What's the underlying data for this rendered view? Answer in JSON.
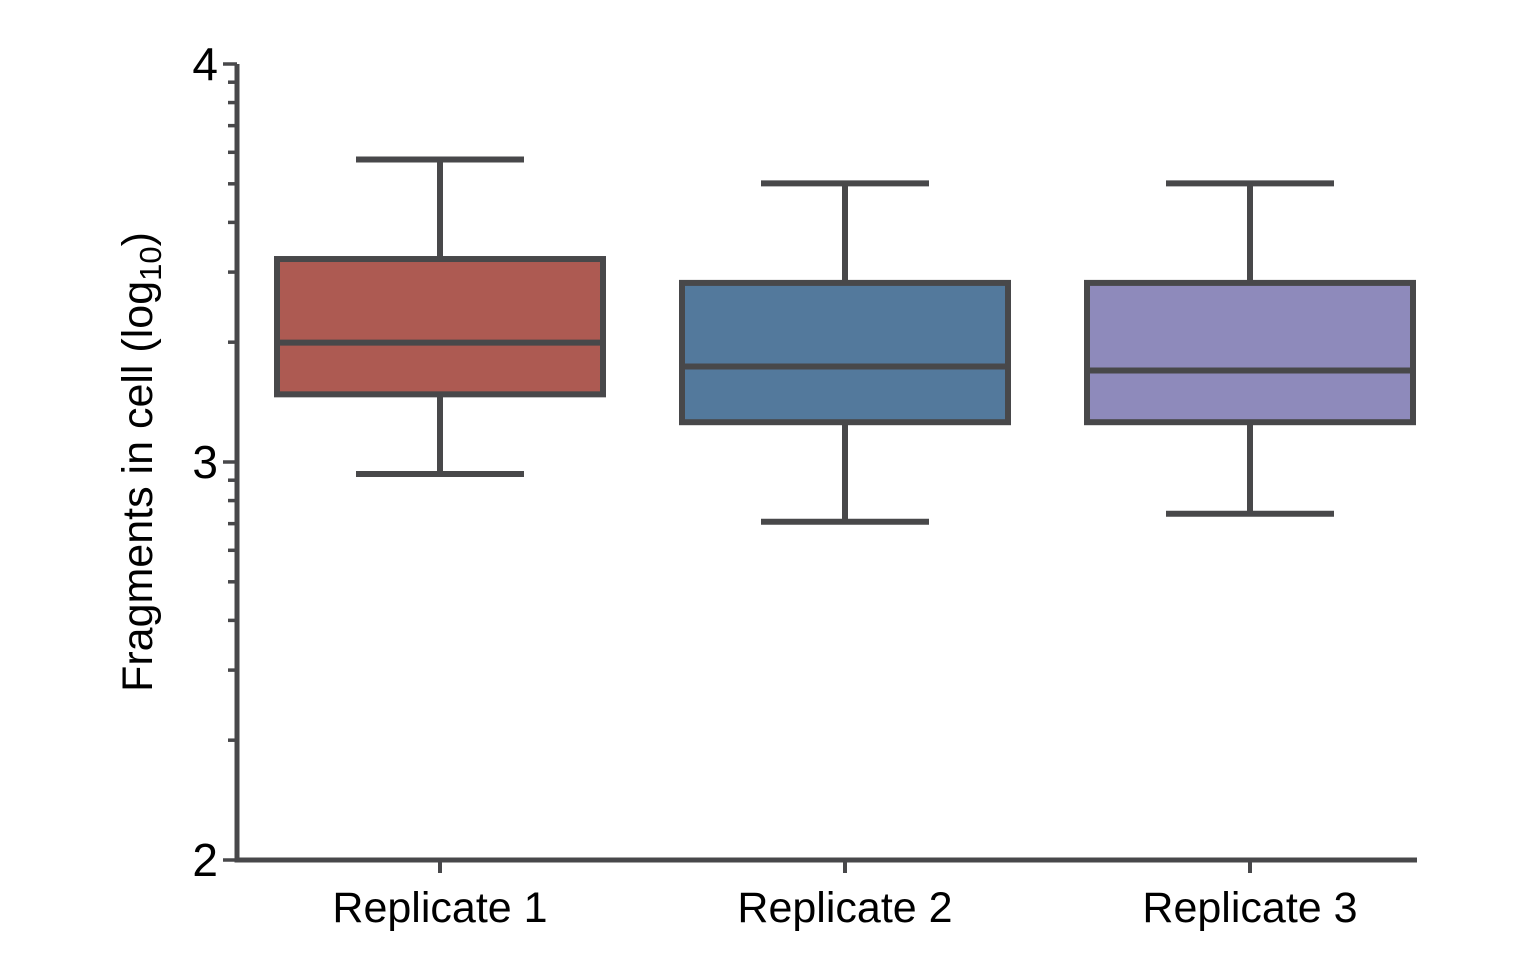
{
  "chart_data": {
    "type": "box",
    "title": "",
    "xlabel": "",
    "ylabel": "Fragments in cell (log10)",
    "ylabel_parts": {
      "pre": "Fragments in cell (log",
      "sub": "10",
      "post": ")"
    },
    "y_scale": "log10-exponent",
    "ylim": [
      2,
      4
    ],
    "y_major_ticks": [
      4,
      3,
      2
    ],
    "y_minor_ticks_per_decade": [
      2,
      3,
      4,
      5,
      6,
      7,
      8,
      9
    ],
    "grid": false,
    "legend": null,
    "categories": [
      "Replicate 1",
      "Replicate 2",
      "Replicate 3"
    ],
    "series": [
      {
        "name": "Replicate 1",
        "color": "#ad5a52",
        "whisker_low": 2.97,
        "q1": 3.17,
        "median": 3.3,
        "q3": 3.51,
        "whisker_high": 3.76
      },
      {
        "name": "Replicate 2",
        "color": "#53799c",
        "whisker_low": 2.85,
        "q1": 3.1,
        "median": 3.24,
        "q3": 3.45,
        "whisker_high": 3.7
      },
      {
        "name": "Replicate 3",
        "color": "#8e8abb",
        "whisker_low": 2.87,
        "q1": 3.1,
        "median": 3.23,
        "q3": 3.45,
        "whisker_high": 3.7
      }
    ],
    "colors": {
      "line": "#48484a",
      "text": "#000000",
      "background": "#ffffff"
    }
  }
}
